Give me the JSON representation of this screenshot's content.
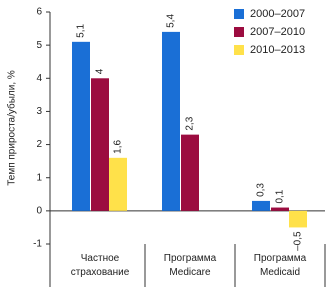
{
  "chart_data": {
    "type": "bar",
    "y_label": "Темп прироста/убыли, %",
    "categories": [
      "Частное страхование",
      "Программа Medicare",
      "Программа Medicaid"
    ],
    "series": [
      {
        "name": "2000–2007",
        "color": "#1a6fd6",
        "values": [
          5.1,
          5.4,
          0.3
        ],
        "value_labels": [
          "5,1",
          "5,4",
          "0,3"
        ]
      },
      {
        "name": "2007–2010",
        "color": "#9c0c40",
        "values": [
          4,
          2.3,
          0.1
        ],
        "value_labels": [
          "4",
          "2,3",
          "0,1"
        ]
      },
      {
        "name": "2010–2013",
        "color": "#ffe14a",
        "values": [
          1.6,
          null,
          -0.5
        ],
        "value_labels": [
          "1,6",
          null,
          "–0,5"
        ]
      }
    ],
    "ylim": [
      -1,
      6
    ],
    "yticks": [
      -1,
      0,
      1,
      2,
      3,
      4,
      5,
      6
    ],
    "legend": "top-right"
  }
}
